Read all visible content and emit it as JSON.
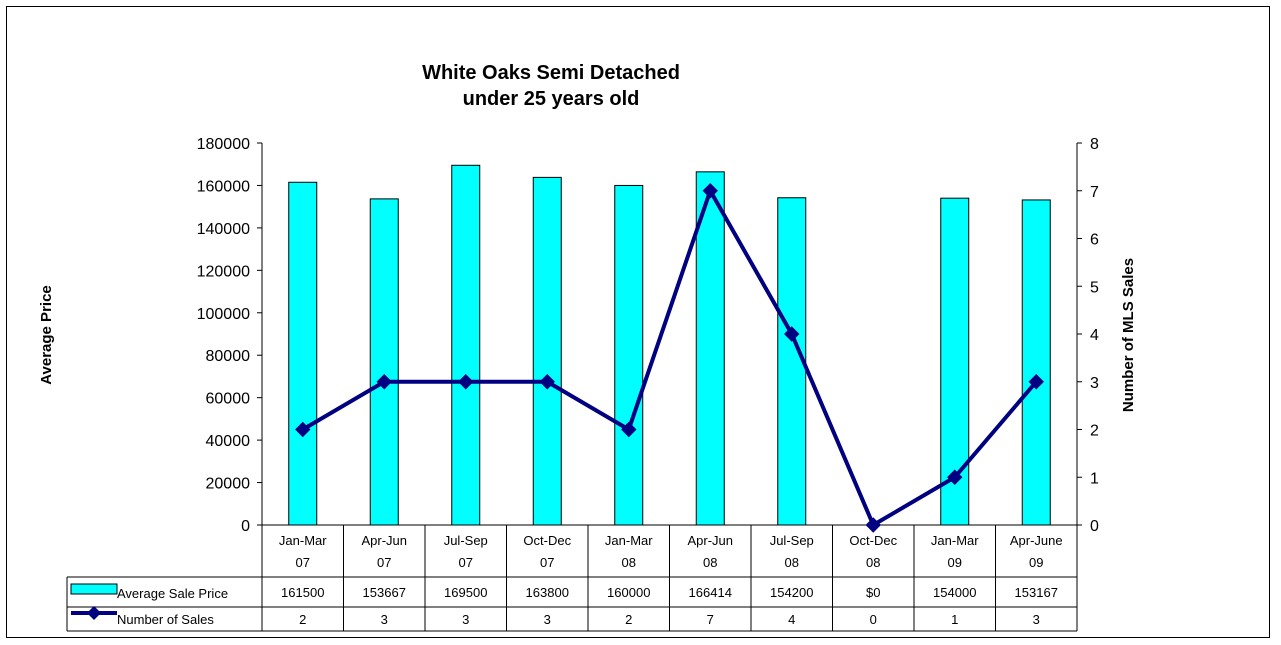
{
  "chart_data": {
    "type": "bar",
    "title": [
      "White Oaks Semi Detached",
      "under 25 years old"
    ],
    "ylabel": "Average Price",
    "y2label": "Number of MLS Sales",
    "ylim": [
      0,
      180000
    ],
    "y2lim": [
      0,
      8
    ],
    "yticks": [
      "0",
      "20000",
      "40000",
      "60000",
      "80000",
      "100000",
      "120000",
      "140000",
      "160000",
      "180000"
    ],
    "y2ticks": [
      "0",
      "1",
      "2",
      "3",
      "4",
      "5",
      "6",
      "7",
      "8"
    ],
    "categories": [
      [
        "Jan-Mar",
        "07"
      ],
      [
        "Apr-Jun",
        "07"
      ],
      [
        "Jul-Sep",
        "07"
      ],
      [
        "Oct-Dec",
        "07"
      ],
      [
        "Jan-Mar",
        "08"
      ],
      [
        "Apr-Jun",
        "08"
      ],
      [
        "Jul-Sep",
        "08"
      ],
      [
        "Oct-Dec",
        "08"
      ],
      [
        "Jan-Mar",
        "09"
      ],
      [
        "Apr-June",
        "09"
      ]
    ],
    "series": [
      {
        "name": "Average Sale Price",
        "type": "bar",
        "axis": "left",
        "color": "#00FFFF",
        "values": [
          161500,
          153667,
          169500,
          163800,
          160000,
          166414,
          154200,
          0,
          154000,
          153167
        ],
        "labels": [
          "161500",
          "153667",
          "169500",
          "163800",
          "160000",
          "166414",
          "154200",
          "$0",
          "154000",
          "153167"
        ]
      },
      {
        "name": "Number of Sales",
        "type": "line",
        "axis": "right",
        "color": "#000080",
        "marker": "diamond",
        "values": [
          2,
          3,
          3,
          3,
          2,
          7,
          4,
          0,
          1,
          3
        ],
        "labels": [
          "2",
          "3",
          "3",
          "3",
          "2",
          "7",
          "4",
          "0",
          "1",
          "3"
        ]
      }
    ],
    "legend": "data-table"
  }
}
